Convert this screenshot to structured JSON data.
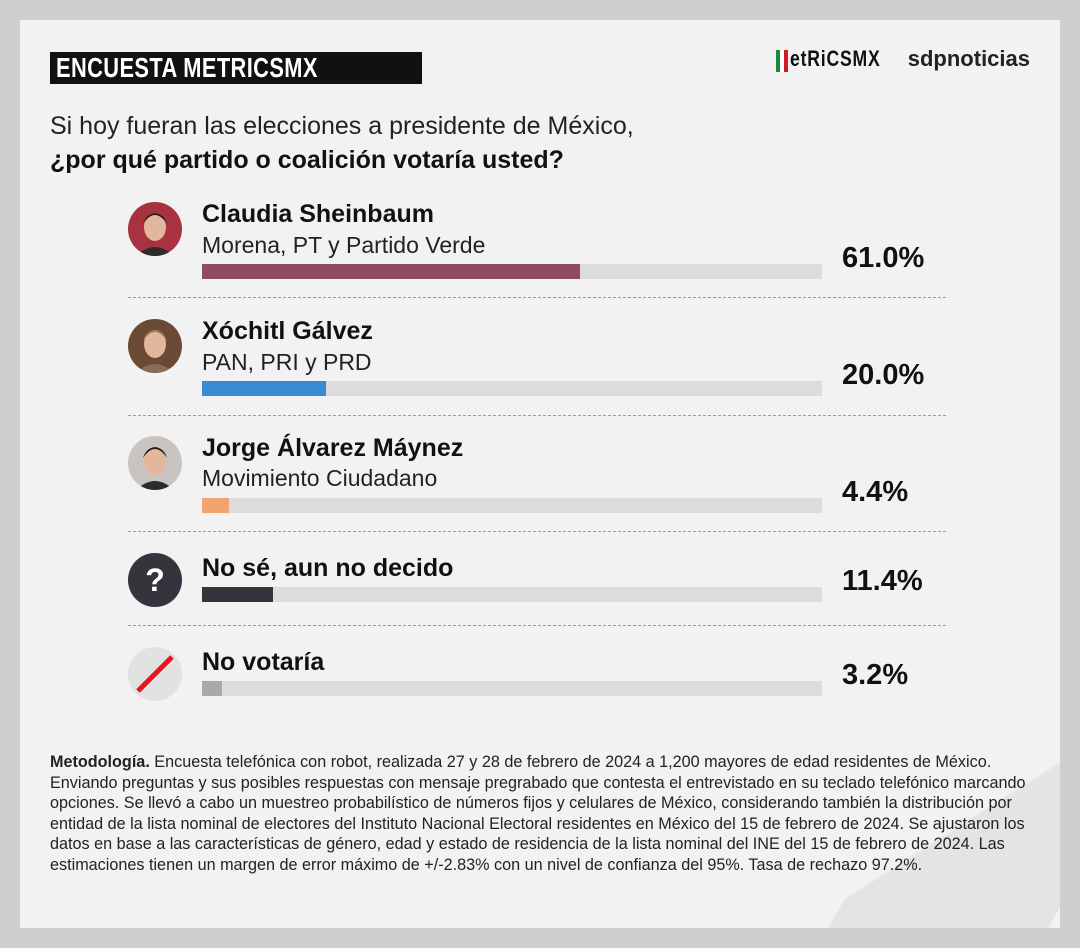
{
  "header": {
    "badge": "ENCUESTA METRICSMX",
    "logo_metrics": "etRiCSMX",
    "logo_sdp": "sdpnoticias"
  },
  "question": {
    "line1": "Si hoy fueran las elecciones a presidente de México,",
    "line2": "¿por qué partido o coalición votaría usted?"
  },
  "chart_data": {
    "type": "bar",
    "title": "¿por qué partido o coalición votaría usted?",
    "xlim": [
      0,
      100
    ],
    "categories": [
      "Claudia Sheinbaum",
      "Xóchitl Gálvez",
      "Jorge Álvarez Máynez",
      "No sé, aun no decido",
      "No votaría"
    ],
    "subtitles": [
      "Morena, PT y Partido Verde",
      "PAN, PRI y PRD",
      "Movimiento Ciudadano",
      "",
      ""
    ],
    "values": [
      61.0,
      20.0,
      4.4,
      11.4,
      3.2
    ],
    "labels": [
      "61.0%",
      "20.0%",
      "4.4%",
      "11.4%",
      "3.2%"
    ],
    "colors": [
      "#8f4a65",
      "#3a8ad6",
      "#f2a36f",
      "#35333b",
      "#a9a9ad"
    ],
    "icons": [
      "candidate-photo",
      "candidate-photo",
      "candidate-photo",
      "question-icon",
      "no-vote-icon"
    ]
  },
  "methodology": {
    "label": "Metodología.",
    "text": " Encuesta telefónica con robot, realizada 27 y 28 de febrero de 2024 a 1,200 mayores de edad residentes de México. Enviando preguntas y sus posibles respuestas con mensaje pregrabado que contesta el entrevistado en su teclado telefónico marcando opciones. Se llevó a cabo un muestreo probabilístico de números fijos y celulares de México, considerando también la distribución por entidad de la lista nominal de electores del Instituto Nacional Electoral residentes en México del 15 de febrero de 2024. Se ajustaron los datos en base a las características de género, edad y estado de residencia de la lista nominal del INE del 15 de febrero de 2024. Las estimaciones tienen un margen de error máximo de +/-2.83% con un nivel de confianza del 95%. Tasa de rechazo 97.2%."
  }
}
